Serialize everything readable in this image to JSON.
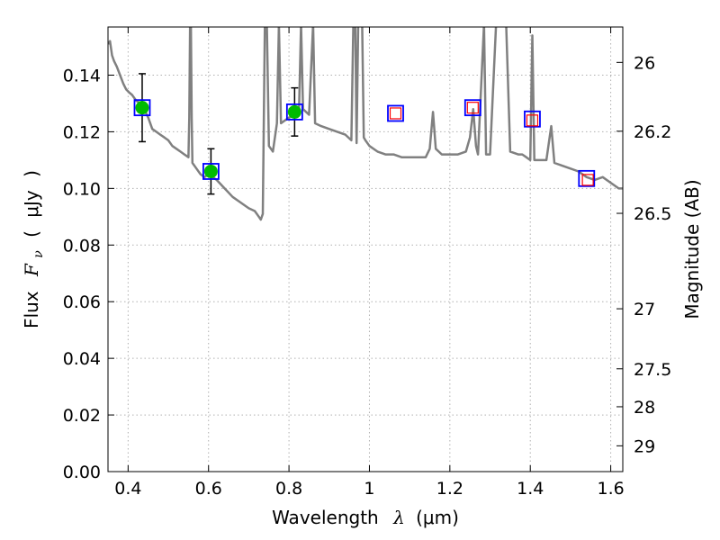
{
  "chart_data": {
    "type": "scatter",
    "xlabel_text": "Wavelength",
    "xlabel_symbol": "λ",
    "xlabel_unit": "(μm)",
    "ylabel_text": "Flux",
    "ylabel_symbol": "F",
    "ylabel_subscript": "ν",
    "ylabel_unit": "μJy",
    "y2label": "Magnitude (AB)",
    "xlim": [
      0.35,
      1.63
    ],
    "ylim": [
      0.0,
      0.157
    ],
    "grid": true,
    "x_ticks": [
      0.4,
      0.6,
      0.8,
      1.0,
      1.2,
      1.4,
      1.6
    ],
    "x_tick_labels": [
      "0.4",
      "0.6",
      "0.8",
      "1",
      "1.2",
      "1.4",
      "1.6"
    ],
    "y_ticks": [
      0.0,
      0.02,
      0.04,
      0.06,
      0.08,
      0.1,
      0.12,
      0.14
    ],
    "y_tick_labels": [
      "0.00",
      "0.02",
      "0.04",
      "0.06",
      "0.08",
      "0.10",
      "0.12",
      "0.14"
    ],
    "y2_ticks": [
      {
        "label": "26",
        "flux": 0.1445
      },
      {
        "label": "26.2",
        "flux": 0.1202
      },
      {
        "label": "26.5",
        "flux": 0.0912
      },
      {
        "label": "27",
        "flux": 0.0575
      },
      {
        "label": "27.5",
        "flux": 0.0363
      },
      {
        "label": "28",
        "flux": 0.0229
      },
      {
        "label": "29",
        "flux": 0.0091
      }
    ],
    "observed_points": [
      {
        "x": 0.435,
        "y": 0.1285,
        "yerr": 0.012
      },
      {
        "x": 0.606,
        "y": 0.106,
        "yerr": 0.008
      },
      {
        "x": 0.814,
        "y": 0.127,
        "yerr": 0.0085
      }
    ],
    "model_bands": [
      {
        "x": 0.435,
        "y": 0.1285
      },
      {
        "x": 0.606,
        "y": 0.106
      },
      {
        "x": 0.814,
        "y": 0.127
      },
      {
        "x": 1.065,
        "y": 0.1265
      },
      {
        "x": 1.257,
        "y": 0.1285
      },
      {
        "x": 1.405,
        "y": 0.1245
      },
      {
        "x": 1.54,
        "y": 0.1035
      }
    ],
    "model_band_markers": [
      {
        "x": 1.065,
        "y": 0.1265
      },
      {
        "x": 1.257,
        "y": 0.1285
      },
      {
        "x": 1.405,
        "y": 0.124
      },
      {
        "x": 1.543,
        "y": 0.103
      }
    ],
    "sed_spectrum": [
      [
        0.35,
        0.151
      ],
      [
        0.355,
        0.152
      ],
      [
        0.36,
        0.147
      ],
      [
        0.365,
        0.145
      ],
      [
        0.372,
        0.143
      ],
      [
        0.38,
        0.14
      ],
      [
        0.388,
        0.137
      ],
      [
        0.395,
        0.135
      ],
      [
        0.402,
        0.134
      ],
      [
        0.41,
        0.133
      ],
      [
        0.42,
        0.131
      ],
      [
        0.43,
        0.13
      ],
      [
        0.44,
        0.128
      ],
      [
        0.45,
        0.125
      ],
      [
        0.46,
        0.121
      ],
      [
        0.47,
        0.12
      ],
      [
        0.48,
        0.119
      ],
      [
        0.49,
        0.118
      ],
      [
        0.5,
        0.117
      ],
      [
        0.51,
        0.115
      ],
      [
        0.52,
        0.114
      ],
      [
        0.53,
        0.113
      ],
      [
        0.54,
        0.112
      ],
      [
        0.55,
        0.111
      ],
      [
        0.552,
        0.125
      ],
      [
        0.554,
        0.158
      ],
      [
        0.556,
        0.158
      ],
      [
        0.558,
        0.125
      ],
      [
        0.56,
        0.109
      ],
      [
        0.57,
        0.107
      ],
      [
        0.58,
        0.105
      ],
      [
        0.59,
        0.104
      ],
      [
        0.6,
        0.105
      ],
      [
        0.61,
        0.104
      ],
      [
        0.62,
        0.103
      ],
      [
        0.64,
        0.1
      ],
      [
        0.66,
        0.097
      ],
      [
        0.68,
        0.095
      ],
      [
        0.7,
        0.093
      ],
      [
        0.715,
        0.092
      ],
      [
        0.725,
        0.09
      ],
      [
        0.73,
        0.089
      ],
      [
        0.735,
        0.091
      ],
      [
        0.74,
        0.158
      ],
      [
        0.745,
        0.158
      ],
      [
        0.75,
        0.115
      ],
      [
        0.76,
        0.113
      ],
      [
        0.77,
        0.123
      ],
      [
        0.775,
        0.158
      ],
      [
        0.78,
        0.123
      ],
      [
        0.79,
        0.124
      ],
      [
        0.8,
        0.125
      ],
      [
        0.815,
        0.126
      ],
      [
        0.825,
        0.128
      ],
      [
        0.83,
        0.158
      ],
      [
        0.835,
        0.128
      ],
      [
        0.85,
        0.126
      ],
      [
        0.86,
        0.158
      ],
      [
        0.865,
        0.123
      ],
      [
        0.88,
        0.122
      ],
      [
        0.9,
        0.121
      ],
      [
        0.92,
        0.12
      ],
      [
        0.94,
        0.119
      ],
      [
        0.955,
        0.117
      ],
      [
        0.96,
        0.158
      ],
      [
        0.965,
        0.158
      ],
      [
        0.968,
        0.116
      ],
      [
        0.972,
        0.158
      ],
      [
        0.978,
        0.158
      ],
      [
        0.982,
        0.158
      ],
      [
        0.986,
        0.118
      ],
      [
        0.99,
        0.117
      ],
      [
        1.0,
        0.115
      ],
      [
        1.02,
        0.113
      ],
      [
        1.04,
        0.112
      ],
      [
        1.06,
        0.112
      ],
      [
        1.08,
        0.111
      ],
      [
        1.1,
        0.111
      ],
      [
        1.12,
        0.111
      ],
      [
        1.14,
        0.111
      ],
      [
        1.15,
        0.114
      ],
      [
        1.158,
        0.127
      ],
      [
        1.165,
        0.114
      ],
      [
        1.18,
        0.112
      ],
      [
        1.2,
        0.112
      ],
      [
        1.22,
        0.112
      ],
      [
        1.24,
        0.113
      ],
      [
        1.25,
        0.118
      ],
      [
        1.258,
        0.128
      ],
      [
        1.265,
        0.115
      ],
      [
        1.27,
        0.112
      ],
      [
        1.285,
        0.158
      ],
      [
        1.29,
        0.112
      ],
      [
        1.3,
        0.112
      ],
      [
        1.315,
        0.158
      ],
      [
        1.325,
        0.158
      ],
      [
        1.34,
        0.158
      ],
      [
        1.35,
        0.113
      ],
      [
        1.37,
        0.112
      ],
      [
        1.38,
        0.112
      ],
      [
        1.39,
        0.111
      ],
      [
        1.4,
        0.11
      ],
      [
        1.405,
        0.154
      ],
      [
        1.41,
        0.11
      ],
      [
        1.42,
        0.11
      ],
      [
        1.44,
        0.11
      ],
      [
        1.452,
        0.122
      ],
      [
        1.46,
        0.109
      ],
      [
        1.48,
        0.108
      ],
      [
        1.5,
        0.107
      ],
      [
        1.52,
        0.106
      ],
      [
        1.54,
        0.104
      ],
      [
        1.56,
        0.103
      ],
      [
        1.58,
        0.104
      ],
      [
        1.6,
        0.102
      ],
      [
        1.62,
        0.1
      ],
      [
        1.63,
        0.1
      ]
    ],
    "colors": {
      "spectrum": "#808080",
      "observed_fill": "#00bb00",
      "band_square": "#0000ff",
      "model_marker": "#ff0000",
      "errorbar": "#000000",
      "grid": "#b0b0b0"
    }
  }
}
